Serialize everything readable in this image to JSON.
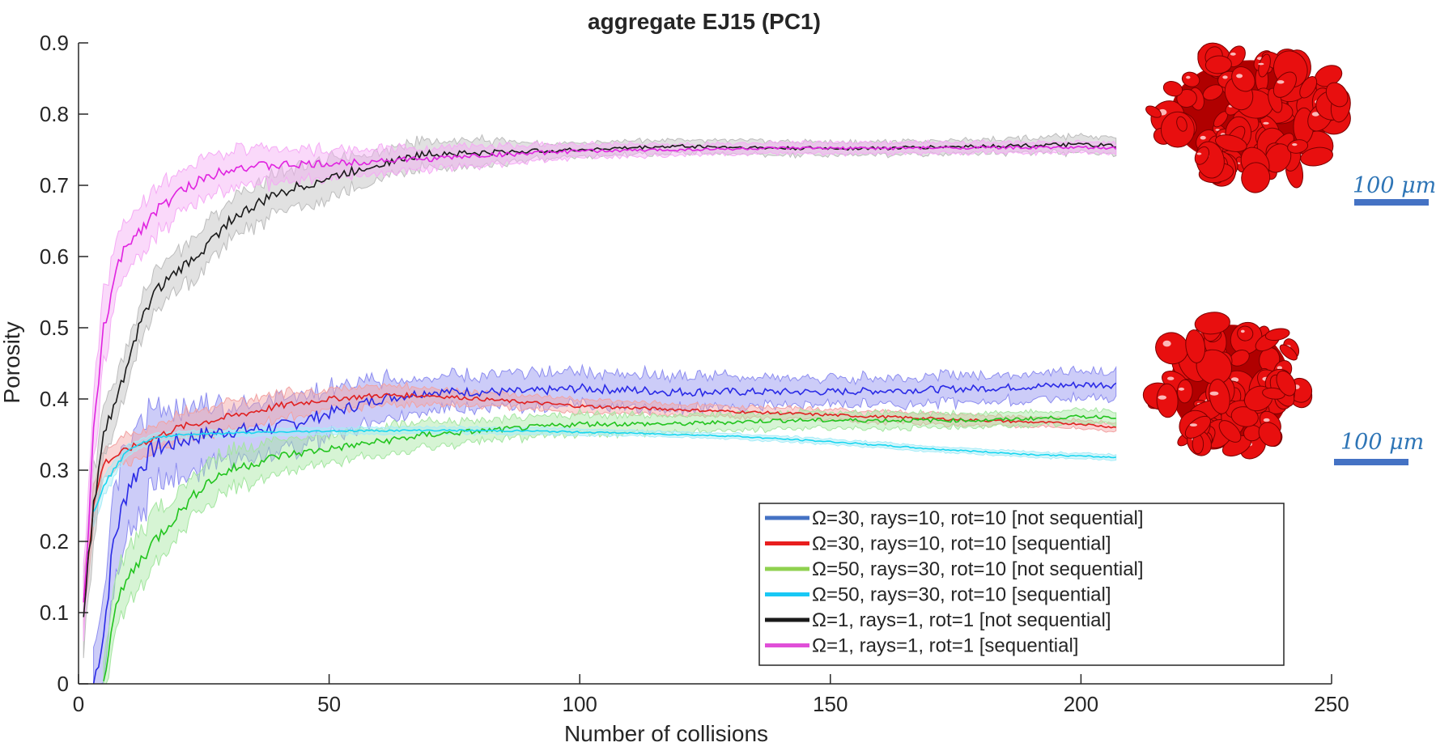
{
  "chart_data": {
    "type": "line",
    "title": "aggregate EJ15 (PC1)",
    "xlabel": "Number of collisions",
    "ylabel": "Porosity",
    "xlim": [
      0,
      250
    ],
    "ylim": [
      0,
      0.9
    ],
    "xticks": [
      0,
      50,
      100,
      150,
      200,
      250
    ],
    "yticks": [
      0,
      0.1,
      0.2,
      0.3,
      0.4,
      0.5,
      0.6,
      0.7,
      0.8,
      0.9
    ],
    "grid": false,
    "legend_position": "bottom-right",
    "x_end": 207,
    "series": [
      {
        "name": "Ω=30, rays=10, rot=10 [not sequential]",
        "legend_color": "#4472c4",
        "line_color": "#2a2ae6",
        "band_color": "#8d8df0",
        "points": [
          [
            3,
            0.0
          ],
          [
            5,
            0.07
          ],
          [
            7,
            0.2
          ],
          [
            10,
            0.28
          ],
          [
            15,
            0.33
          ],
          [
            20,
            0.34
          ],
          [
            25,
            0.35
          ],
          [
            30,
            0.355
          ],
          [
            40,
            0.36
          ],
          [
            50,
            0.38
          ],
          [
            60,
            0.4
          ],
          [
            70,
            0.41
          ],
          [
            80,
            0.41
          ],
          [
            90,
            0.41
          ],
          [
            100,
            0.415
          ],
          [
            120,
            0.41
          ],
          [
            140,
            0.41
          ],
          [
            150,
            0.41
          ],
          [
            180,
            0.415
          ],
          [
            200,
            0.42
          ],
          [
            207,
            0.42
          ]
        ],
        "band": [
          0.06,
          0.06,
          0.07,
          0.07,
          0.06,
          0.05,
          0.045,
          0.04,
          0.04,
          0.035,
          0.03,
          0.025,
          0.025,
          0.025,
          0.025,
          0.025,
          0.02,
          0.02,
          0.02,
          0.02,
          0.02
        ]
      },
      {
        "name": "Ω=30, rays=10, rot=10 [sequential]",
        "legend_color": "#e81e1e",
        "line_color": "#e02020",
        "band_color": "#f2a2a2",
        "points": [
          [
            1,
            0.12
          ],
          [
            3,
            0.25
          ],
          [
            5,
            0.31
          ],
          [
            10,
            0.33
          ],
          [
            20,
            0.36
          ],
          [
            30,
            0.375
          ],
          [
            40,
            0.39
          ],
          [
            50,
            0.4
          ],
          [
            60,
            0.405
          ],
          [
            70,
            0.405
          ],
          [
            80,
            0.4
          ],
          [
            100,
            0.39
          ],
          [
            120,
            0.385
          ],
          [
            140,
            0.38
          ],
          [
            160,
            0.375
          ],
          [
            180,
            0.37
          ],
          [
            200,
            0.365
          ],
          [
            207,
            0.36
          ]
        ],
        "band": [
          0.04,
          0.03,
          0.02,
          0.02,
          0.02,
          0.02,
          0.02,
          0.015,
          0.015,
          0.012,
          0.01,
          0.01,
          0.008,
          0.008,
          0.008,
          0.008,
          0.006,
          0.006
        ]
      },
      {
        "name": "Ω=50, rays=30, rot=10 [not sequential]",
        "legend_color": "#8fd14f",
        "line_color": "#22c41e",
        "band_color": "#a4e6a0",
        "points": [
          [
            5,
            0.0
          ],
          [
            7,
            0.1
          ],
          [
            10,
            0.15
          ],
          [
            15,
            0.2
          ],
          [
            20,
            0.24
          ],
          [
            25,
            0.28
          ],
          [
            30,
            0.3
          ],
          [
            40,
            0.32
          ],
          [
            50,
            0.33
          ],
          [
            60,
            0.34
          ],
          [
            70,
            0.35
          ],
          [
            80,
            0.355
          ],
          [
            90,
            0.36
          ],
          [
            100,
            0.365
          ],
          [
            120,
            0.365
          ],
          [
            140,
            0.37
          ],
          [
            150,
            0.37
          ],
          [
            180,
            0.37
          ],
          [
            200,
            0.375
          ],
          [
            207,
            0.375
          ]
        ],
        "band": [
          0.03,
          0.04,
          0.04,
          0.04,
          0.03,
          0.03,
          0.03,
          0.025,
          0.02,
          0.02,
          0.02,
          0.015,
          0.015,
          0.015,
          0.012,
          0.012,
          0.012,
          0.01,
          0.01,
          0.01
        ]
      },
      {
        "name": "Ω=50, rays=30, rot=10 [sequential]",
        "legend_color": "#19c8f5",
        "line_color": "#18d6f0",
        "band_color": "#a6ecf7",
        "points": [
          [
            3,
            0.24
          ],
          [
            5,
            0.28
          ],
          [
            8,
            0.31
          ],
          [
            10,
            0.33
          ],
          [
            15,
            0.345
          ],
          [
            20,
            0.35
          ],
          [
            30,
            0.352
          ],
          [
            50,
            0.355
          ],
          [
            70,
            0.356
          ],
          [
            90,
            0.355
          ],
          [
            110,
            0.352
          ],
          [
            130,
            0.348
          ],
          [
            150,
            0.34
          ],
          [
            170,
            0.33
          ],
          [
            190,
            0.322
          ],
          [
            207,
            0.318
          ]
        ],
        "band": [
          0.02,
          0.015,
          0.01,
          0.008,
          0.006,
          0.005,
          0.005,
          0.005,
          0.005,
          0.005,
          0.004,
          0.004,
          0.004,
          0.004,
          0.004,
          0.004
        ]
      },
      {
        "name": "Ω=1, rays=1, rot=1 [not sequential]",
        "legend_color": "#1a1a1a",
        "line_color": "#1a1a1a",
        "band_color": "#bdbdbd",
        "points": [
          [
            1,
            0.1
          ],
          [
            3,
            0.25
          ],
          [
            5,
            0.35
          ],
          [
            8,
            0.41
          ],
          [
            10,
            0.45
          ],
          [
            12,
            0.5
          ],
          [
            15,
            0.55
          ],
          [
            20,
            0.58
          ],
          [
            25,
            0.61
          ],
          [
            30,
            0.65
          ],
          [
            35,
            0.67
          ],
          [
            40,
            0.69
          ],
          [
            45,
            0.7
          ],
          [
            50,
            0.71
          ],
          [
            60,
            0.73
          ],
          [
            70,
            0.745
          ],
          [
            80,
            0.745
          ],
          [
            90,
            0.748
          ],
          [
            100,
            0.75
          ],
          [
            120,
            0.755
          ],
          [
            140,
            0.752
          ],
          [
            160,
            0.752
          ],
          [
            180,
            0.755
          ],
          [
            200,
            0.757
          ],
          [
            207,
            0.755
          ]
        ],
        "band": [
          0.05,
          0.05,
          0.04,
          0.03,
          0.03,
          0.03,
          0.03,
          0.03,
          0.03,
          0.03,
          0.03,
          0.03,
          0.03,
          0.03,
          0.02,
          0.02,
          0.02,
          0.012,
          0.01,
          0.01,
          0.01,
          0.01,
          0.01,
          0.012,
          0.012
        ]
      },
      {
        "name": "Ω=1, rays=1, rot=1 [sequential]",
        "legend_color": "#e04fd8",
        "line_color": "#e023e0",
        "band_color": "#f5aaf5",
        "points": [
          [
            1,
            0.1
          ],
          [
            3,
            0.35
          ],
          [
            5,
            0.5
          ],
          [
            8,
            0.59
          ],
          [
            10,
            0.62
          ],
          [
            15,
            0.66
          ],
          [
            20,
            0.69
          ],
          [
            25,
            0.71
          ],
          [
            30,
            0.725
          ],
          [
            40,
            0.728
          ],
          [
            50,
            0.73
          ],
          [
            60,
            0.735
          ],
          [
            70,
            0.737
          ],
          [
            80,
            0.742
          ],
          [
            90,
            0.745
          ],
          [
            100,
            0.748
          ],
          [
            120,
            0.75
          ],
          [
            140,
            0.752
          ],
          [
            160,
            0.752
          ],
          [
            180,
            0.753
          ],
          [
            200,
            0.753
          ],
          [
            207,
            0.752
          ]
        ],
        "band": [
          0.06,
          0.05,
          0.05,
          0.04,
          0.035,
          0.035,
          0.03,
          0.03,
          0.03,
          0.025,
          0.02,
          0.02,
          0.015,
          0.015,
          0.012,
          0.01,
          0.008,
          0.008,
          0.008,
          0.008,
          0.008,
          0.008
        ]
      }
    ]
  },
  "insets": [
    {
      "scale_label": "100 μm",
      "bar_color": "#4472c4",
      "label_color": "#2e75b6",
      "blob_color": "#e80f0f"
    },
    {
      "scale_label": "100 μm",
      "bar_color": "#4472c4",
      "label_color": "#2e75b6",
      "blob_color": "#e80f0f"
    }
  ]
}
